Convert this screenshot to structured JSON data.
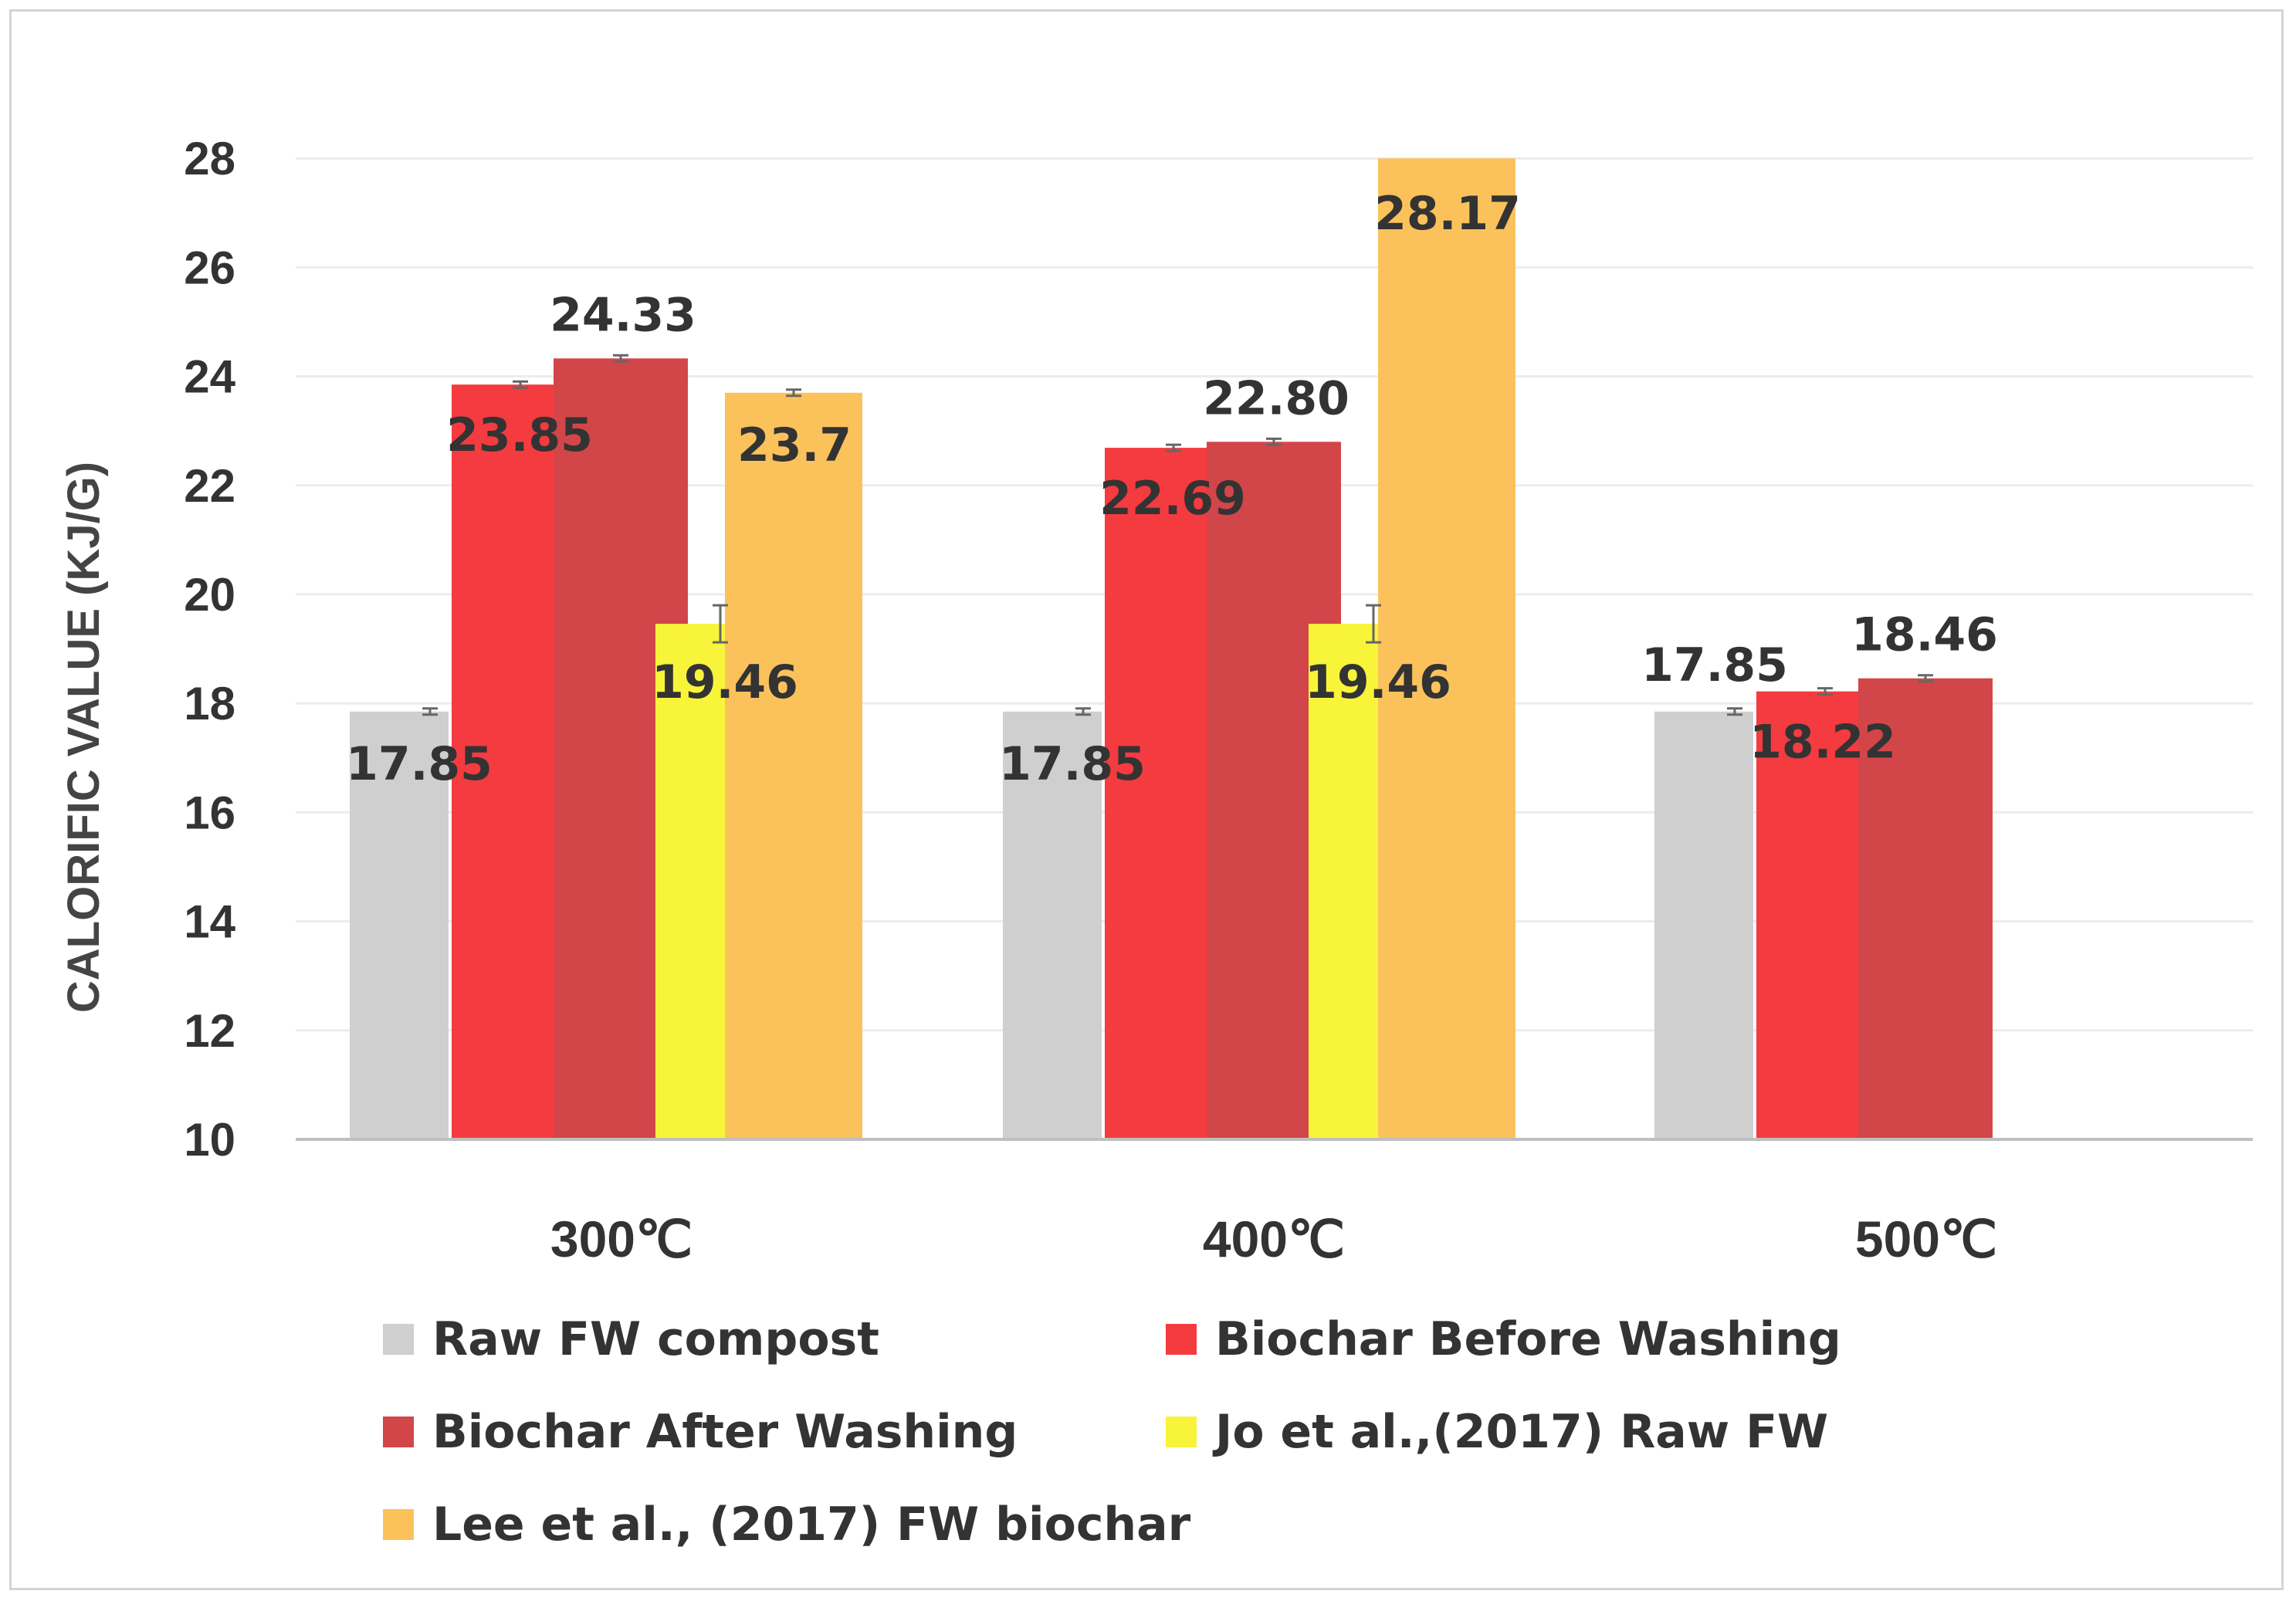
{
  "chart_data": {
    "type": "bar",
    "title": "",
    "xlabel": "",
    "ylabel": "CALORIFIC VALUE (KJ/G)",
    "ylim": [
      10,
      28
    ],
    "yticks": [
      10,
      12,
      14,
      16,
      18,
      20,
      22,
      24,
      26,
      28
    ],
    "grid": true,
    "legend_position": "bottom",
    "categories": [
      "300℃",
      "400℃",
      "500℃"
    ],
    "series": [
      {
        "name": "Raw FW compost",
        "color": "#cfcfcf",
        "values": [
          17.85,
          17.85,
          17.85
        ],
        "labels": [
          "17.85",
          "17.85",
          "17.85"
        ]
      },
      {
        "name": "Biochar Before Washing",
        "color": "#f43b3f",
        "values": [
          23.85,
          22.69,
          18.22
        ],
        "labels": [
          "23.85",
          "22.69",
          "18.22"
        ]
      },
      {
        "name": "Biochar After Washing",
        "color": "#d24649",
        "values": [
          24.33,
          22.8,
          18.46
        ],
        "labels": [
          "24.33",
          "22.80",
          "18.46"
        ]
      },
      {
        "name": "Jo et al.,(2017) Raw FW",
        "color": "#f8f43a",
        "values": [
          19.46,
          19.46,
          null
        ],
        "labels": [
          "19.46",
          "19.46",
          null
        ]
      },
      {
        "name": "Lee et al., (2017) FW biochar",
        "color": "#fbc25c",
        "values": [
          23.7,
          28.17,
          null
        ],
        "labels": [
          "23.7",
          "28.17",
          null
        ]
      }
    ]
  }
}
